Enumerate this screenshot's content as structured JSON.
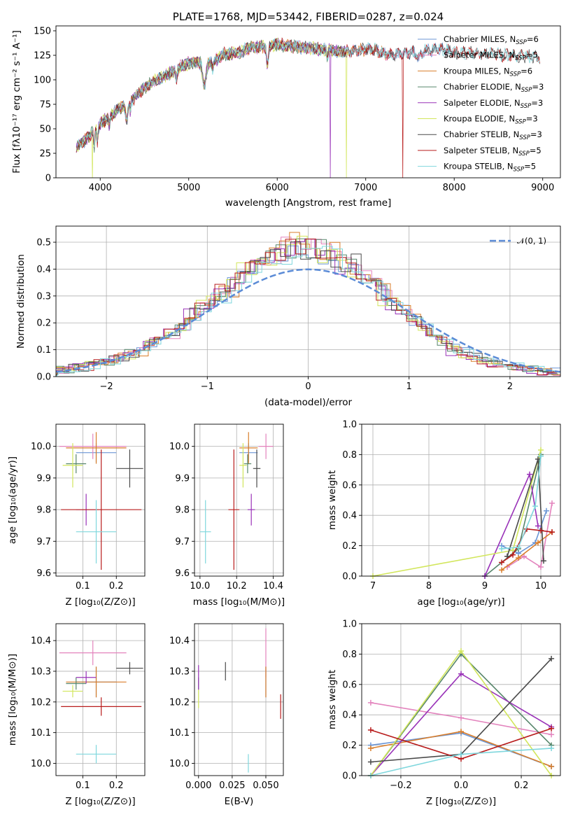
{
  "colors": {
    "chabrier_miles": "#6b96d6",
    "salpeter_miles": "#e383bd",
    "kroupa_miles": "#d97e2b",
    "chabrier_elodie": "#57866b",
    "salpeter_elodie": "#9932b8",
    "kroupa_elodie": "#d2e65c",
    "chabrier_stelib": "#4a4a4a",
    "salpeter_stelib": "#b81c1c",
    "kroupa_stelib": "#7fd7dd",
    "normal_curve": "#5b8bd6"
  },
  "chart_data": [
    {
      "id": "spectrum",
      "type": "line",
      "title": "PLATE=1768, MJD=53442, FIBERID=0287, z=0.024",
      "xlabel": "wavelength [Angstrom, rest frame]",
      "ylabel": "Flux [fλ10⁻¹⁷ erg cm⁻² s⁻¹ A⁻¹]",
      "xlim": [
        3500,
        9200
      ],
      "ylim": [
        0,
        155
      ],
      "xticks": [
        "4000",
        "5000",
        "6000",
        "7000",
        "8000",
        "9000"
      ],
      "yticks": [
        "0",
        "25",
        "50",
        "75",
        "100",
        "125",
        "150"
      ],
      "legend_position": "right",
      "legend": [
        {
          "base": "Chabrier MILES, N",
          "sub": "SSP",
          "tail": "=6"
        },
        {
          "base": "Salpeter MILES, N",
          "sub": "SSP",
          "tail": "=5"
        },
        {
          "base": "Kroupa MILES, N",
          "sub": "SSP",
          "tail": "=6"
        },
        {
          "base": "Chabrier ELODIE, N",
          "sub": "SSP",
          "tail": "=3"
        },
        {
          "base": "Salpeter ELODIE, N",
          "sub": "SSP",
          "tail": "=3"
        },
        {
          "base": "Kroupa ELODIE, N",
          "sub": "SSP",
          "tail": "=3"
        },
        {
          "base": "Chabrier STELIB, N",
          "sub": "SSP",
          "tail": "=3"
        },
        {
          "base": "Salpeter STELIB, N",
          "sub": "SSP",
          "tail": "=5"
        },
        {
          "base": "Kroupa STELIB, N",
          "sub": "SSP",
          "tail": "=5"
        }
      ],
      "continuum": {
        "x": [
          3730,
          3800,
          3900,
          4000,
          4100,
          4200,
          4300,
          4400,
          4500,
          4600,
          4700,
          4800,
          4900,
          5000,
          5100,
          5200,
          5300,
          5400,
          5500,
          5600,
          5700,
          5800,
          5900,
          6000,
          6100,
          6200,
          6300,
          6400,
          6500,
          6600,
          6700,
          6800,
          6900,
          7000,
          7100,
          7200,
          7300,
          7400,
          7500,
          7600,
          7700,
          7800,
          7900,
          8000,
          8200,
          8400,
          8600,
          8800,
          9000
        ],
        "y": [
          30,
          36,
          45,
          55,
          62,
          70,
          74,
          83,
          92,
          98,
          103,
          107,
          113,
          117,
          118,
          115,
          120,
          126,
          127,
          129,
          133,
          133,
          135,
          136,
          135,
          134,
          133,
          132,
          131,
          130,
          129,
          129,
          130,
          131,
          131,
          127,
          125,
          127,
          128,
          129,
          130,
          131,
          130,
          128,
          127,
          126,
          125,
          124,
          123
        ]
      }
    },
    {
      "id": "residuals",
      "type": "histogram",
      "xlabel": "(data-model)/error",
      "ylabel": "Normed distribution",
      "xlim": [
        -2.5,
        2.5
      ],
      "ylim": [
        0,
        0.56
      ],
      "xticks": [
        "−2",
        "−1",
        "0",
        "1",
        "2"
      ],
      "yticks": [
        "0.0",
        "0.1",
        "0.2",
        "0.3",
        "0.4",
        "0.5"
      ],
      "legend": "𝒩(0, 1)",
      "legend_position": "top-right",
      "grid": true,
      "bins": {
        "start": -2.5,
        "width": 0.1
      },
      "base_heights": [
        0.025,
        0.03,
        0.035,
        0.04,
        0.05,
        0.06,
        0.07,
        0.085,
        0.1,
        0.12,
        0.14,
        0.165,
        0.19,
        0.22,
        0.25,
        0.28,
        0.31,
        0.34,
        0.37,
        0.4,
        0.43,
        0.455,
        0.47,
        0.48,
        0.48,
        0.475,
        0.465,
        0.45,
        0.43,
        0.405,
        0.375,
        0.345,
        0.31,
        0.275,
        0.24,
        0.21,
        0.18,
        0.15,
        0.125,
        0.1,
        0.085,
        0.07,
        0.06,
        0.05,
        0.04,
        0.035,
        0.03,
        0.025,
        0.02,
        0.02
      ]
    },
    {
      "id": "age_vs_Z",
      "type": "errorbar",
      "xlabel": "Z [log₁₀(Z/Z⊙)]",
      "ylabel": "age [log₁₀(age/yr)]",
      "xlim": [
        0.02,
        0.285
      ],
      "ylim": [
        9.59,
        10.07
      ],
      "xticks": [
        "0.1",
        "0.2"
      ],
      "yticks": [
        "9.6",
        "9.7",
        "9.8",
        "9.9",
        "10.0"
      ],
      "points": [
        {
          "s": "chabrier_miles",
          "x": 0.14,
          "y": 9.98,
          "xerr": 0.06,
          "yerr": 0.03
        },
        {
          "s": "salpeter_miles",
          "x": 0.13,
          "y": 10.0,
          "xerr": 0.1,
          "yerr": 0.04
        },
        {
          "s": "kroupa_miles",
          "x": 0.14,
          "y": 9.995,
          "xerr": 0.09,
          "yerr": 0.05
        },
        {
          "s": "chabrier_elodie",
          "x": 0.08,
          "y": 9.945,
          "xerr": 0.03,
          "yerr": 0.03
        },
        {
          "s": "salpeter_elodie",
          "x": 0.11,
          "y": 9.8,
          "xerr": 0.03,
          "yerr": 0.05
        },
        {
          "s": "kroupa_elodie",
          "x": 0.07,
          "y": 9.94,
          "xerr": 0.03,
          "yerr": 0.07
        },
        {
          "s": "chabrier_stelib",
          "x": 0.24,
          "y": 9.93,
          "xerr": 0.04,
          "yerr": 0.06
        },
        {
          "s": "salpeter_stelib",
          "x": 0.155,
          "y": 9.8,
          "xerr": 0.12,
          "yerr": 0.19
        },
        {
          "s": "kroupa_stelib",
          "x": 0.14,
          "y": 9.73,
          "xerr": 0.06,
          "yerr": 0.1
        }
      ]
    },
    {
      "id": "age_vs_mass",
      "type": "errorbar",
      "xlabel": "mass [log₁₀(M/M⊙)]",
      "ylabel": "",
      "xlim": [
        9.97,
        10.455
      ],
      "ylim": [
        9.59,
        10.07
      ],
      "xticks": [
        "10.0",
        "10.2",
        "10.4"
      ],
      "yticks": [
        "9.6",
        "9.7",
        "9.8",
        "9.9",
        "10.0"
      ],
      "points": [
        {
          "s": "chabrier_miles",
          "x": 10.265,
          "y": 9.98,
          "xerr": 0.05,
          "yerr": 0.03
        },
        {
          "s": "salpeter_miles",
          "x": 10.36,
          "y": 10.0,
          "xerr": 0.04,
          "yerr": 0.04
        },
        {
          "s": "kroupa_miles",
          "x": 10.265,
          "y": 9.995,
          "xerr": 0.05,
          "yerr": 0.05
        },
        {
          "s": "chabrier_elodie",
          "x": 10.26,
          "y": 9.945,
          "xerr": 0.02,
          "yerr": 0.03
        },
        {
          "s": "salpeter_elodie",
          "x": 10.28,
          "y": 9.8,
          "xerr": 0.02,
          "yerr": 0.05
        },
        {
          "s": "kroupa_elodie",
          "x": 10.235,
          "y": 9.94,
          "xerr": 0.02,
          "yerr": 0.07
        },
        {
          "s": "chabrier_stelib",
          "x": 10.31,
          "y": 9.93,
          "xerr": 0.02,
          "yerr": 0.06
        },
        {
          "s": "salpeter_stelib",
          "x": 10.185,
          "y": 9.8,
          "xerr": 0.03,
          "yerr": 0.19
        },
        {
          "s": "kroupa_stelib",
          "x": 10.03,
          "y": 9.73,
          "xerr": 0.03,
          "yerr": 0.1
        }
      ]
    },
    {
      "id": "weight_vs_age",
      "type": "line",
      "xlabel": "age [log₁₀(age/yr)]",
      "ylabel": "mass weight",
      "xlim": [
        6.8,
        10.35
      ],
      "ylim": [
        0,
        1.0
      ],
      "xticks": [
        "7",
        "8",
        "9",
        "10"
      ],
      "yticks": [
        "0.0",
        "0.2",
        "0.4",
        "0.6",
        "0.8",
        "1.0"
      ],
      "series": [
        {
          "s": "chabrier_miles",
          "x": [
            9.3,
            9.6,
            9.9,
            10.1
          ],
          "y": [
            0.2,
            0.15,
            0.22,
            0.43
          ]
        },
        {
          "s": "salpeter_miles",
          "x": [
            9.4,
            9.7,
            10.0,
            10.2
          ],
          "y": [
            0.06,
            0.13,
            0.06,
            0.48
          ]
        },
        {
          "s": "kroupa_miles",
          "x": [
            9.3,
            9.6,
            9.95,
            10.2
          ],
          "y": [
            0.04,
            0.12,
            0.22,
            0.29
          ]
        },
        {
          "s": "chabrier_elodie",
          "x": [
            9.0,
            9.6,
            10.0
          ],
          "y": [
            0.0,
            0.18,
            0.8
          ]
        },
        {
          "s": "salpeter_elodie",
          "x": [
            9.0,
            9.8,
            9.95
          ],
          "y": [
            0.0,
            0.67,
            0.33
          ]
        },
        {
          "s": "kroupa_elodie",
          "x": [
            7.0,
            9.5,
            10.0
          ],
          "y": [
            0.0,
            0.17,
            0.83
          ]
        },
        {
          "s": "chabrier_stelib",
          "x": [
            9.4,
            9.95,
            10.05
          ],
          "y": [
            0.13,
            0.77,
            0.1
          ]
        },
        {
          "s": "salpeter_stelib",
          "x": [
            9.3,
            9.5,
            9.75,
            10.0,
            10.2
          ],
          "y": [
            0.09,
            0.14,
            0.31,
            0.3,
            0.29
          ]
        },
        {
          "s": "kroupa_stelib",
          "x": [
            9.3,
            9.6,
            9.9,
            10.0
          ],
          "y": [
            0.18,
            0.19,
            0.46,
            0.79
          ]
        }
      ]
    },
    {
      "id": "mass_vs_Z",
      "type": "errorbar",
      "xlabel": "Z [log₁₀(Z/Z⊙)]",
      "ylabel": "mass [log₁₀(M/M⊙)]",
      "xlim": [
        0.02,
        0.285
      ],
      "ylim": [
        9.96,
        10.455
      ],
      "xticks": [
        "0.1",
        "0.2"
      ],
      "yticks": [
        "10.0",
        "10.1",
        "10.2",
        "10.3",
        "10.4"
      ],
      "points": [
        {
          "s": "chabrier_miles",
          "x": 0.14,
          "y": 10.265,
          "xerr": 0.06,
          "yerr": 0.05
        },
        {
          "s": "salpeter_miles",
          "x": 0.13,
          "y": 10.36,
          "xerr": 0.1,
          "yerr": 0.04
        },
        {
          "s": "kroupa_miles",
          "x": 0.14,
          "y": 10.265,
          "xerr": 0.09,
          "yerr": 0.05
        },
        {
          "s": "chabrier_elodie",
          "x": 0.08,
          "y": 10.26,
          "xerr": 0.03,
          "yerr": 0.02
        },
        {
          "s": "salpeter_elodie",
          "x": 0.11,
          "y": 10.28,
          "xerr": 0.03,
          "yerr": 0.02
        },
        {
          "s": "kroupa_elodie",
          "x": 0.07,
          "y": 10.235,
          "xerr": 0.03,
          "yerr": 0.02
        },
        {
          "s": "chabrier_stelib",
          "x": 0.24,
          "y": 10.31,
          "xerr": 0.04,
          "yerr": 0.02
        },
        {
          "s": "salpeter_stelib",
          "x": 0.155,
          "y": 10.185,
          "xerr": 0.12,
          "yerr": 0.03
        },
        {
          "s": "kroupa_stelib",
          "x": 0.14,
          "y": 10.03,
          "xerr": 0.06,
          "yerr": 0.03
        }
      ]
    },
    {
      "id": "mass_vs_ebv",
      "type": "errorbar",
      "xlabel": "E(B-V)",
      "ylabel": "",
      "xlim": [
        -0.003,
        0.063
      ],
      "ylim": [
        9.96,
        10.455
      ],
      "xticks": [
        "0.000",
        "0.025",
        "0.050"
      ],
      "yticks": [
        "10.0",
        "10.1",
        "10.2",
        "10.3",
        "10.4"
      ],
      "points": [
        {
          "s": "chabrier_miles",
          "x": 0.05,
          "y": 10.265,
          "xerr": 0.0,
          "yerr": 0.05
        },
        {
          "s": "salpeter_miles",
          "x": 0.05,
          "y": 10.36,
          "xerr": 0.0,
          "yerr": 0.08
        },
        {
          "s": "kroupa_miles",
          "x": 0.05,
          "y": 10.265,
          "xerr": 0.0,
          "yerr": 0.05
        },
        {
          "s": "chabrier_elodie",
          "x": 0.0,
          "y": 10.26,
          "xerr": 0.0,
          "yerr": 0.02
        },
        {
          "s": "salpeter_elodie",
          "x": 0.0,
          "y": 10.28,
          "xerr": 0.0,
          "yerr": 0.04
        },
        {
          "s": "kroupa_elodie",
          "x": 0.0,
          "y": 10.21,
          "xerr": 0.0,
          "yerr": 0.03
        },
        {
          "s": "chabrier_stelib",
          "x": 0.02,
          "y": 10.3,
          "xerr": 0.0,
          "yerr": 0.03
        },
        {
          "s": "salpeter_stelib",
          "x": 0.061,
          "y": 10.185,
          "xerr": 0.0,
          "yerr": 0.04
        },
        {
          "s": "kroupa_stelib",
          "x": 0.037,
          "y": 10.0,
          "xerr": 0.0,
          "yerr": 0.03
        }
      ]
    },
    {
      "id": "weight_vs_Z",
      "type": "line",
      "xlabel": "Z [log₁₀(Z/Z⊙)]",
      "ylabel": "mass weight",
      "xlim": [
        -0.33,
        0.33
      ],
      "ylim": [
        0,
        1.0
      ],
      "xticks": [
        "−0.2",
        "0.0",
        "0.2"
      ],
      "yticks": [
        "0.0",
        "0.2",
        "0.4",
        "0.6",
        "0.8",
        "1.0"
      ],
      "series": [
        {
          "s": "chabrier_miles",
          "x": [
            -0.3,
            0.0,
            0.3
          ],
          "y": [
            0.2,
            0.28,
            0.06
          ]
        },
        {
          "s": "salpeter_miles",
          "x": [
            -0.3,
            0.0,
            0.3
          ],
          "y": [
            0.48,
            0.38,
            0.27
          ]
        },
        {
          "s": "kroupa_miles",
          "x": [
            -0.3,
            0.0,
            0.3
          ],
          "y": [
            0.18,
            0.29,
            0.06
          ]
        },
        {
          "s": "chabrier_elodie",
          "x": [
            -0.3,
            0.0,
            0.3
          ],
          "y": [
            0.0,
            0.8,
            0.2
          ]
        },
        {
          "s": "salpeter_elodie",
          "x": [
            -0.3,
            0.0,
            0.3
          ],
          "y": [
            0.0,
            0.67,
            0.32
          ]
        },
        {
          "s": "kroupa_elodie",
          "x": [
            -0.3,
            0.0,
            0.3
          ],
          "y": [
            0.0,
            0.82,
            0.0
          ]
        },
        {
          "s": "chabrier_stelib",
          "x": [
            -0.3,
            0.0,
            0.3
          ],
          "y": [
            0.09,
            0.14,
            0.77
          ]
        },
        {
          "s": "salpeter_stelib",
          "x": [
            -0.3,
            0.0,
            0.3
          ],
          "y": [
            0.3,
            0.11,
            0.31
          ]
        },
        {
          "s": "kroupa_stelib",
          "x": [
            -0.3,
            0.0,
            0.3
          ],
          "y": [
            0.0,
            0.14,
            0.18
          ]
        }
      ]
    }
  ]
}
